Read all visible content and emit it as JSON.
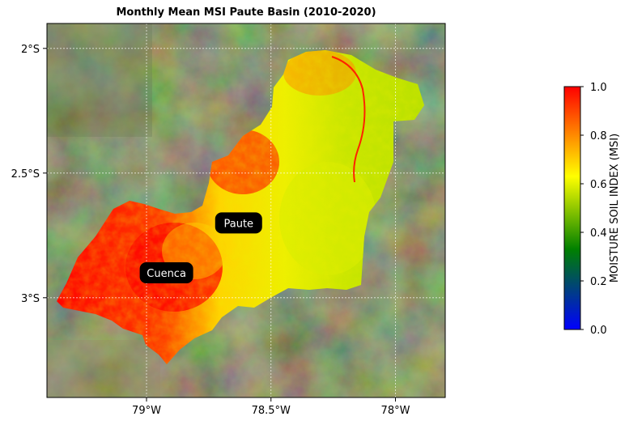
{
  "title": "Monthly Mean MSI Paute Basin (2010-2020)",
  "axes": {
    "lon_ticks": [
      {
        "value": -79.0,
        "label": "79°W"
      },
      {
        "value": -78.5,
        "label": "78.5°W"
      },
      {
        "value": -78.0,
        "label": "78°W"
      }
    ],
    "lat_ticks": [
      {
        "value": -2.0,
        "label": "2°S"
      },
      {
        "value": -2.5,
        "label": "2.5°S"
      },
      {
        "value": -3.0,
        "label": "3°S"
      }
    ],
    "lon_range": [
      -79.4,
      -77.8
    ],
    "lat_range": [
      -3.4,
      -1.9
    ],
    "grid": true
  },
  "places": [
    {
      "name": "Paute",
      "lon": -78.63,
      "lat": -2.7
    },
    {
      "name": "Cuenca",
      "lon": -78.92,
      "lat": -2.9
    }
  ],
  "colorbar": {
    "label": "MOISTURE SOIL INDEX (MSI)",
    "min": 0.0,
    "max": 1.0,
    "ticks": [
      {
        "value": 0.0,
        "label": "0.0"
      },
      {
        "value": 0.2,
        "label": "0.2"
      },
      {
        "value": 0.4,
        "label": "0.4"
      },
      {
        "value": 0.6,
        "label": "0.6"
      },
      {
        "value": 0.8,
        "label": "0.8"
      },
      {
        "value": 1.0,
        "label": "1.0"
      }
    ],
    "colors": [
      "#0000ff",
      "#008000",
      "#ffff00",
      "#ff0000"
    ]
  },
  "colors": {
    "basemap": "#3b4a2a",
    "basin_dry": "#ff0000",
    "basin_mid": "#ffff00",
    "basin_wet": "#c4e400",
    "label_bg": "#000000"
  }
}
